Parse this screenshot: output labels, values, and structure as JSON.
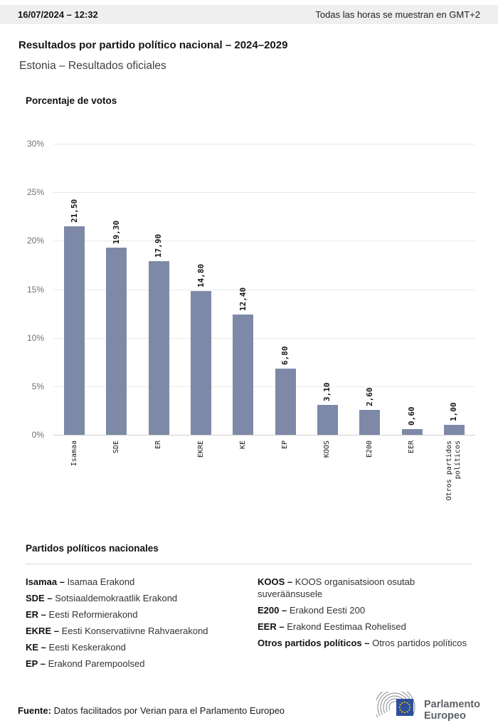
{
  "header": {
    "datetime": "16/07/2024 – 12:32",
    "timezone_note": "Todas las horas se muestran en GMT+2"
  },
  "title": "Resultados por partido político nacional – 2024–2029",
  "subtitle": "Estonia – Resultados oficiales",
  "chart_data": {
    "type": "bar",
    "title": "Porcentaje de votos",
    "categories": [
      "Isamaa",
      "SDE",
      "ER",
      "EKRE",
      "KE",
      "EP",
      "KOOS",
      "E200",
      "EER",
      "Otros partidos\npolíticos"
    ],
    "values": [
      21.5,
      19.3,
      17.9,
      14.8,
      12.4,
      6.8,
      3.1,
      2.6,
      0.6,
      1.0
    ],
    "value_labels": [
      "21,50",
      "19,30",
      "17,90",
      "14,80",
      "12,40",
      "6,80",
      "3,10",
      "2,60",
      "0,60",
      "1,00"
    ],
    "yticks": [
      {
        "label": "0%",
        "v": 0
      },
      {
        "label": "5%",
        "v": 5
      },
      {
        "label": "10%",
        "v": 10
      },
      {
        "label": "15%",
        "v": 15
      },
      {
        "label": "20%",
        "v": 20
      },
      {
        "label": "25%",
        "v": 25
      },
      {
        "label": "30%",
        "v": 30
      }
    ],
    "ylim": [
      0,
      30
    ],
    "grid": true,
    "legend_position": "none",
    "bar_color": "#7e89a7"
  },
  "parties": {
    "title": "Partidos políticos nacionales",
    "columns": [
      [
        {
          "abbr": "Isamaa –",
          "name": "Isamaa Erakond"
        },
        {
          "abbr": "SDE –",
          "name": "Sotsiaaldemokraatlik Erakond"
        },
        {
          "abbr": "ER –",
          "name": "Eesti Reformierakond"
        },
        {
          "abbr": "EKRE –",
          "name": "Eesti Konservatiivne Rahvaerakond"
        },
        {
          "abbr": "KE –",
          "name": "Eesti Keskerakond"
        },
        {
          "abbr": "EP –",
          "name": "Erakond Parempoolsed"
        }
      ],
      [
        {
          "abbr": "KOOS –",
          "name": "KOOS organisatsioon osutab suveräänsusele"
        },
        {
          "abbr": "E200 –",
          "name": "Erakond Eesti 200"
        },
        {
          "abbr": "EER –",
          "name": "Erakond Eestimaa Rohelised"
        },
        {
          "abbr": "Otros partidos políticos –",
          "name": "Otros partidos políticos"
        }
      ]
    ]
  },
  "footer": {
    "source_label": "Fuente:",
    "source_text": " Datos facilitados por Verian para el Parlamento Europeo",
    "logo_line1": "Parlamento",
    "logo_line2": "Europeo"
  },
  "colors": {
    "bar": "#7e89a7",
    "header_bg": "#efefef",
    "grid": "#e9e9e9",
    "axis": "#d0d0d0",
    "eu_blue": "#2d4f9e",
    "eu_star": "#ffcc00",
    "logo_gray": "#8f9295"
  }
}
